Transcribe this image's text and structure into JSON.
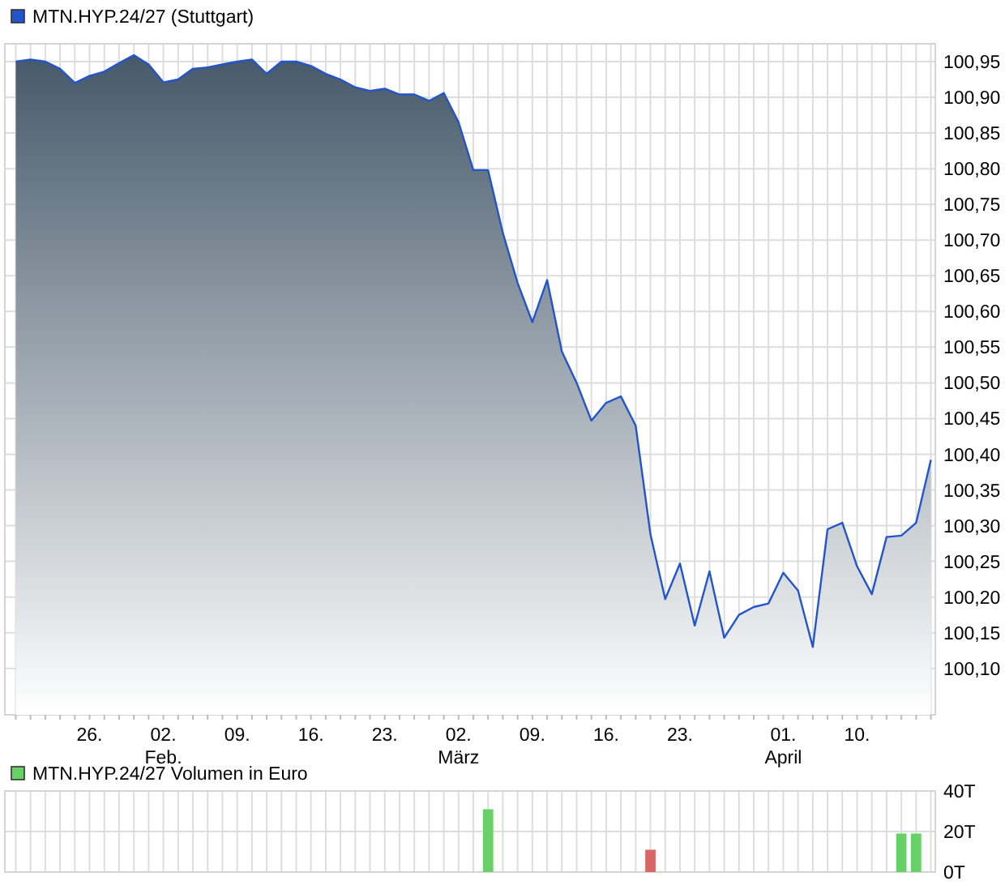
{
  "chart_data": [
    {
      "type": "area",
      "categories": [
        null,
        null,
        null,
        null,
        null,
        "26.",
        null,
        null,
        null,
        null,
        "02.\nFeb.",
        null,
        null,
        null,
        null,
        "09.",
        null,
        null,
        null,
        null,
        "16.",
        null,
        null,
        null,
        null,
        "23.",
        null,
        null,
        null,
        null,
        "02.\nMärz",
        null,
        null,
        null,
        null,
        "09.",
        null,
        null,
        null,
        null,
        "16.",
        null,
        null,
        null,
        null,
        "23.",
        null,
        null,
        null,
        null,
        null,
        null,
        "01.\nApril",
        null,
        null,
        null,
        null,
        "10.",
        null,
        null,
        null,
        null,
        null
      ],
      "series": [
        {
          "name": "MTN.HYP.24/27 (Stuttgart)",
          "color": "#2255cc",
          "values": [
            100.95,
            100.953,
            100.95,
            100.94,
            100.92,
            100.93,
            100.936,
            100.948,
            100.959,
            100.946,
            100.921,
            100.925,
            100.94,
            100.942,
            100.946,
            100.95,
            100.953,
            100.933,
            100.95,
            100.95,
            100.944,
            100.933,
            100.925,
            100.914,
            100.909,
            100.912,
            100.904,
            100.904,
            100.895,
            100.906,
            100.865,
            100.798,
            100.798,
            100.71,
            100.64,
            100.585,
            100.644,
            100.544,
            100.5,
            100.447,
            100.472,
            100.481,
            100.44,
            100.288,
            100.197,
            100.247,
            100.16,
            100.236,
            100.143,
            100.175,
            100.186,
            100.191,
            100.234,
            100.209,
            100.13,
            100.295,
            100.304,
            100.243,
            100.204,
            100.284,
            100.286,
            100.304,
            100.392
          ]
        }
      ],
      "ylim": [
        100.035,
        100.975
      ],
      "yticks": [
        {
          "value": 100.1,
          "label": "100,10"
        },
        {
          "value": 100.15,
          "label": "100,15"
        },
        {
          "value": 100.2,
          "label": "100,20"
        },
        {
          "value": 100.25,
          "label": "100,25"
        },
        {
          "value": 100.3,
          "label": "100,30"
        },
        {
          "value": 100.35,
          "label": "100,35"
        },
        {
          "value": 100.4,
          "label": "100,40"
        },
        {
          "value": 100.45,
          "label": "100,45"
        },
        {
          "value": 100.5,
          "label": "100,50"
        },
        {
          "value": 100.55,
          "label": "100,55"
        },
        {
          "value": 100.6,
          "label": "100,60"
        },
        {
          "value": 100.65,
          "label": "100,65"
        },
        {
          "value": 100.7,
          "label": "100,70"
        },
        {
          "value": 100.75,
          "label": "100,75"
        },
        {
          "value": 100.8,
          "label": "100,80"
        },
        {
          "value": 100.85,
          "label": "100,85"
        },
        {
          "value": 100.9,
          "label": "100,90"
        },
        {
          "value": 100.95,
          "label": "100,95"
        }
      ],
      "grid": true,
      "legend": "top left"
    },
    {
      "type": "bar",
      "categories": [
        null,
        null,
        null,
        null,
        null,
        null,
        null,
        null,
        null,
        null,
        null,
        null,
        null,
        null,
        null,
        null,
        null,
        null,
        null,
        null,
        null,
        null,
        null,
        null,
        null,
        null,
        null,
        null,
        null,
        null,
        null,
        null,
        null,
        null,
        null,
        null,
        null,
        null,
        null,
        null,
        null,
        null,
        null,
        null,
        null,
        null,
        null,
        null,
        null,
        null,
        null,
        null,
        null,
        null,
        null,
        null,
        null,
        null,
        null,
        null,
        null,
        null,
        null
      ],
      "series": [
        {
          "name": "MTN.HYP.24/27 Volumen in Euro",
          "color": "#66d166",
          "values": [
            null,
            null,
            null,
            null,
            null,
            null,
            null,
            null,
            null,
            null,
            null,
            null,
            null,
            null,
            null,
            null,
            null,
            null,
            null,
            null,
            null,
            null,
            null,
            null,
            null,
            null,
            null,
            null,
            null,
            null,
            null,
            null,
            31,
            null,
            null,
            null,
            null,
            null,
            null,
            null,
            null,
            null,
            null,
            11,
            null,
            null,
            null,
            null,
            null,
            null,
            null,
            null,
            null,
            null,
            null,
            null,
            null,
            null,
            null,
            null,
            19,
            19,
            null
          ],
          "colors": [
            null,
            null,
            null,
            null,
            null,
            null,
            null,
            null,
            null,
            null,
            null,
            null,
            null,
            null,
            null,
            null,
            null,
            null,
            null,
            null,
            null,
            null,
            null,
            null,
            null,
            null,
            null,
            null,
            null,
            null,
            null,
            null,
            "#66d166",
            null,
            null,
            null,
            null,
            null,
            null,
            null,
            null,
            null,
            null,
            "#d96666",
            null,
            null,
            null,
            null,
            null,
            null,
            null,
            null,
            null,
            null,
            null,
            null,
            null,
            null,
            null,
            null,
            "#66d166",
            "#66d166",
            null
          ]
        }
      ],
      "ylim": [
        0,
        40
      ],
      "yticks": [
        {
          "value": 0,
          "label": "0T"
        },
        {
          "value": 20,
          "label": "20T"
        },
        {
          "value": 40,
          "label": "40T"
        }
      ],
      "grid": true,
      "legend": "top left"
    }
  ]
}
